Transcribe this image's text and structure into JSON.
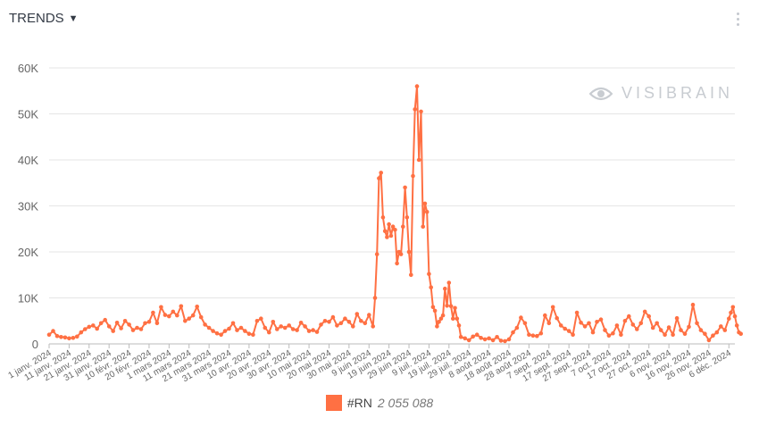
{
  "header": {
    "title": "TRENDS"
  },
  "watermark": "VISIBRAIN",
  "colors": {
    "series": "#ff7043",
    "grid": "#e5e5e5",
    "axis": "#666666"
  },
  "chart_data": {
    "type": "line",
    "ylim": [
      0,
      60000
    ],
    "y_ticks": [
      {
        "value": 0,
        "label": "0"
      },
      {
        "value": 10000,
        "label": "10K"
      },
      {
        "value": 20000,
        "label": "20K"
      },
      {
        "value": 30000,
        "label": "30K"
      },
      {
        "value": 40000,
        "label": "40K"
      },
      {
        "value": 50000,
        "label": "50K"
      },
      {
        "value": 60000,
        "label": "60K"
      }
    ],
    "x_ticks": [
      {
        "day": 0,
        "label": "1 janv. 2024"
      },
      {
        "day": 10,
        "label": "11 janv. 2024"
      },
      {
        "day": 20,
        "label": "21 janv. 2024"
      },
      {
        "day": 30,
        "label": "31 janv. 2024"
      },
      {
        "day": 40,
        "label": "10 févr. 2024"
      },
      {
        "day": 50,
        "label": "20 févr. 2024"
      },
      {
        "day": 60,
        "label": "1 mars 2024"
      },
      {
        "day": 70,
        "label": "11 mars 2024"
      },
      {
        "day": 80,
        "label": "21 mars 2024"
      },
      {
        "day": 90,
        "label": "31 mars 2024"
      },
      {
        "day": 100,
        "label": "10 avr. 2024"
      },
      {
        "day": 110,
        "label": "20 avr. 2024"
      },
      {
        "day": 120,
        "label": "30 avr. 2024"
      },
      {
        "day": 130,
        "label": "10 mai 2024"
      },
      {
        "day": 140,
        "label": "20 mai 2024"
      },
      {
        "day": 150,
        "label": "30 mai 2024"
      },
      {
        "day": 160,
        "label": "9 juin 2024"
      },
      {
        "day": 170,
        "label": "19 juin 2024"
      },
      {
        "day": 180,
        "label": "29 juin 2024"
      },
      {
        "day": 190,
        "label": "9 juil. 2024"
      },
      {
        "day": 200,
        "label": "19 juil. 2024"
      },
      {
        "day": 210,
        "label": "29 juil. 2024"
      },
      {
        "day": 220,
        "label": "8 août 2024"
      },
      {
        "day": 230,
        "label": "18 août 2024"
      },
      {
        "day": 240,
        "label": "28 août 2024"
      },
      {
        "day": 250,
        "label": "7 sept. 2024"
      },
      {
        "day": 260,
        "label": "17 sept. 2024"
      },
      {
        "day": 270,
        "label": "27 sept. 2024"
      },
      {
        "day": 280,
        "label": "7 oct. 2024"
      },
      {
        "day": 290,
        "label": "17 oct. 2024"
      },
      {
        "day": 300,
        "label": "27 oct. 2024"
      },
      {
        "day": 310,
        "label": "6 nov. 2024"
      },
      {
        "day": 320,
        "label": "16 nov. 2024"
      },
      {
        "day": 330,
        "label": "26 nov. 2024"
      },
      {
        "day": 340,
        "label": "6 déc. 2024"
      }
    ],
    "x_range": [
      0,
      343
    ],
    "points": [
      [
        0,
        2000
      ],
      [
        2,
        2800
      ],
      [
        4,
        1700
      ],
      [
        6,
        1500
      ],
      [
        8,
        1400
      ],
      [
        10,
        1200
      ],
      [
        12,
        1300
      ],
      [
        14,
        1600
      ],
      [
        16,
        2500
      ],
      [
        18,
        3200
      ],
      [
        20,
        3700
      ],
      [
        22,
        4000
      ],
      [
        24,
        3300
      ],
      [
        26,
        4500
      ],
      [
        28,
        5200
      ],
      [
        30,
        3800
      ],
      [
        32,
        2800
      ],
      [
        34,
        4600
      ],
      [
        36,
        3400
      ],
      [
        38,
        5000
      ],
      [
        40,
        4200
      ],
      [
        42,
        3000
      ],
      [
        44,
        3500
      ],
      [
        46,
        3200
      ],
      [
        48,
        4500
      ],
      [
        50,
        4800
      ],
      [
        52,
        6800
      ],
      [
        54,
        4500
      ],
      [
        56,
        8000
      ],
      [
        58,
        6300
      ],
      [
        60,
        6000
      ],
      [
        62,
        7000
      ],
      [
        64,
        6200
      ],
      [
        66,
        8200
      ],
      [
        68,
        5000
      ],
      [
        70,
        5500
      ],
      [
        72,
        6200
      ],
      [
        74,
        8100
      ],
      [
        76,
        5800
      ],
      [
        78,
        4200
      ],
      [
        80,
        3500
      ],
      [
        82,
        2800
      ],
      [
        84,
        2300
      ],
      [
        86,
        2000
      ],
      [
        88,
        2800
      ],
      [
        90,
        3300
      ],
      [
        92,
        4500
      ],
      [
        94,
        3000
      ],
      [
        96,
        3500
      ],
      [
        98,
        2800
      ],
      [
        100,
        2200
      ],
      [
        102,
        2000
      ],
      [
        104,
        5000
      ],
      [
        106,
        5500
      ],
      [
        108,
        3500
      ],
      [
        110,
        2500
      ],
      [
        112,
        4800
      ],
      [
        114,
        3200
      ],
      [
        116,
        3800
      ],
      [
        118,
        3500
      ],
      [
        120,
        4000
      ],
      [
        122,
        3200
      ],
      [
        124,
        3000
      ],
      [
        126,
        4600
      ],
      [
        128,
        3800
      ],
      [
        130,
        2800
      ],
      [
        132,
        3000
      ],
      [
        134,
        2600
      ],
      [
        136,
        4200
      ],
      [
        138,
        5000
      ],
      [
        140,
        4800
      ],
      [
        142,
        5800
      ],
      [
        144,
        4000
      ],
      [
        146,
        4500
      ],
      [
        148,
        5500
      ],
      [
        150,
        4800
      ],
      [
        152,
        3800
      ],
      [
        154,
        6500
      ],
      [
        156,
        5000
      ],
      [
        158,
        4500
      ],
      [
        160,
        6300
      ],
      [
        162,
        3800
      ],
      [
        163,
        10000
      ],
      [
        164,
        19500
      ],
      [
        165,
        36000
      ],
      [
        166,
        37200
      ],
      [
        167,
        27500
      ],
      [
        168,
        24500
      ],
      [
        169,
        23200
      ],
      [
        170,
        26000
      ],
      [
        171,
        23500
      ],
      [
        172,
        25500
      ],
      [
        173,
        24800
      ],
      [
        174,
        17500
      ],
      [
        175,
        20000
      ],
      [
        176,
        19500
      ],
      [
        177,
        25500
      ],
      [
        178,
        34000
      ],
      [
        179,
        27500
      ],
      [
        180,
        20000
      ],
      [
        181,
        15000
      ],
      [
        182,
        36500
      ],
      [
        183,
        51000
      ],
      [
        184,
        56000
      ],
      [
        185,
        40000
      ],
      [
        186,
        50500
      ],
      [
        187,
        25500
      ],
      [
        188,
        30500
      ],
      [
        189,
        28700
      ],
      [
        190,
        15200
      ],
      [
        191,
        12300
      ],
      [
        192,
        8000
      ],
      [
        193,
        7200
      ],
      [
        194,
        3800
      ],
      [
        195,
        4800
      ],
      [
        196,
        5500
      ],
      [
        197,
        6200
      ],
      [
        198,
        12000
      ],
      [
        199,
        8300
      ],
      [
        200,
        13300
      ],
      [
        201,
        8200
      ],
      [
        202,
        5500
      ],
      [
        203,
        7800
      ],
      [
        204,
        5500
      ],
      [
        205,
        4000
      ],
      [
        206,
        1500
      ],
      [
        208,
        1200
      ],
      [
        210,
        800
      ],
      [
        212,
        1600
      ],
      [
        214,
        2000
      ],
      [
        216,
        1300
      ],
      [
        218,
        1000
      ],
      [
        220,
        1200
      ],
      [
        222,
        800
      ],
      [
        224,
        1500
      ],
      [
        226,
        700
      ],
      [
        228,
        600
      ],
      [
        230,
        1000
      ],
      [
        232,
        2500
      ],
      [
        234,
        3500
      ],
      [
        236,
        5700
      ],
      [
        238,
        4500
      ],
      [
        240,
        2000
      ],
      [
        242,
        1800
      ],
      [
        244,
        1700
      ],
      [
        246,
        2300
      ],
      [
        248,
        6200
      ],
      [
        250,
        4500
      ],
      [
        252,
        8000
      ],
      [
        254,
        5600
      ],
      [
        256,
        4000
      ],
      [
        258,
        3300
      ],
      [
        260,
        2800
      ],
      [
        262,
        2000
      ],
      [
        264,
        6800
      ],
      [
        266,
        4600
      ],
      [
        268,
        3800
      ],
      [
        270,
        4500
      ],
      [
        272,
        2500
      ],
      [
        274,
        4800
      ],
      [
        276,
        5300
      ],
      [
        278,
        3000
      ],
      [
        280,
        1800
      ],
      [
        282,
        2300
      ],
      [
        284,
        4000
      ],
      [
        286,
        2000
      ],
      [
        288,
        5000
      ],
      [
        290,
        6000
      ],
      [
        292,
        4200
      ],
      [
        294,
        3200
      ],
      [
        296,
        4500
      ],
      [
        298,
        7000
      ],
      [
        300,
        6000
      ],
      [
        302,
        3500
      ],
      [
        304,
        4500
      ],
      [
        306,
        3000
      ],
      [
        308,
        2000
      ],
      [
        310,
        3600
      ],
      [
        312,
        2000
      ],
      [
        314,
        5600
      ],
      [
        316,
        3000
      ],
      [
        318,
        2200
      ],
      [
        320,
        3700
      ],
      [
        322,
        8500
      ],
      [
        324,
        4500
      ],
      [
        326,
        3000
      ],
      [
        328,
        2200
      ],
      [
        330,
        800
      ],
      [
        332,
        1800
      ],
      [
        334,
        2500
      ],
      [
        336,
        3800
      ],
      [
        338,
        3000
      ],
      [
        340,
        5500
      ],
      [
        341,
        6800
      ],
      [
        342,
        8000
      ],
      [
        343,
        6000
      ],
      [
        344,
        4000
      ],
      [
        345,
        2500
      ],
      [
        346,
        2200
      ]
    ],
    "series": [
      {
        "name": "#RN",
        "total": "2 055 088"
      }
    ]
  }
}
